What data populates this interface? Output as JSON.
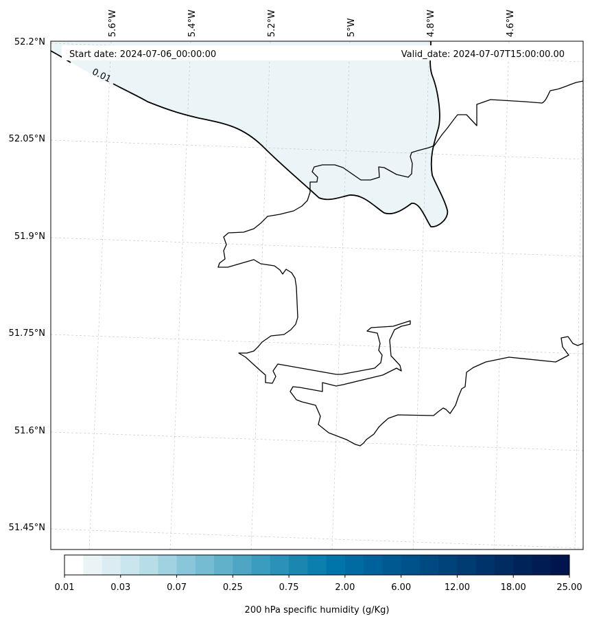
{
  "header": {
    "start_date": "Start date: 2024-07-06_00:00:00",
    "valid_date": "Valid_date: 2024-07-07T15:00:00.00"
  },
  "map": {
    "lat_labels": [
      "52.2°N",
      "52.05°N",
      "51.9°N",
      "51.75°N",
      "51.6°N",
      "51.45°N"
    ],
    "lon_labels": [
      "5.6°W",
      "5.4°W",
      "5.2°W",
      "5°W",
      "4.8°W",
      "4.6°W"
    ],
    "contour_label": "0.01",
    "shaded_color": "#ebf5f8"
  },
  "colorbar": {
    "tick_labels": [
      "0.01",
      "0.03",
      "0.07",
      "0.25",
      "0.75",
      "2.00",
      "6.00",
      "12.00",
      "18.00",
      "25.00"
    ],
    "label": "200 hPa specific humidity (g/Kg)",
    "colors": [
      "#ffffff",
      "#eaf4f7",
      "#dbedf2",
      "#c9e5ed",
      "#b6dde8",
      "#a1d2e1",
      "#8ac6da",
      "#75bcd3",
      "#61b1cb",
      "#4ea6c4",
      "#3c9cbf",
      "#2b91b8",
      "#1b87b1",
      "#0b7fae",
      "#0075a9",
      "#006ba1",
      "#00629a",
      "#005a92",
      "#00528a",
      "#004a82",
      "#00427a",
      "#003b72",
      "#00336a",
      "#002c62",
      "#00245a",
      "#001c53",
      "#00154b"
    ]
  }
}
